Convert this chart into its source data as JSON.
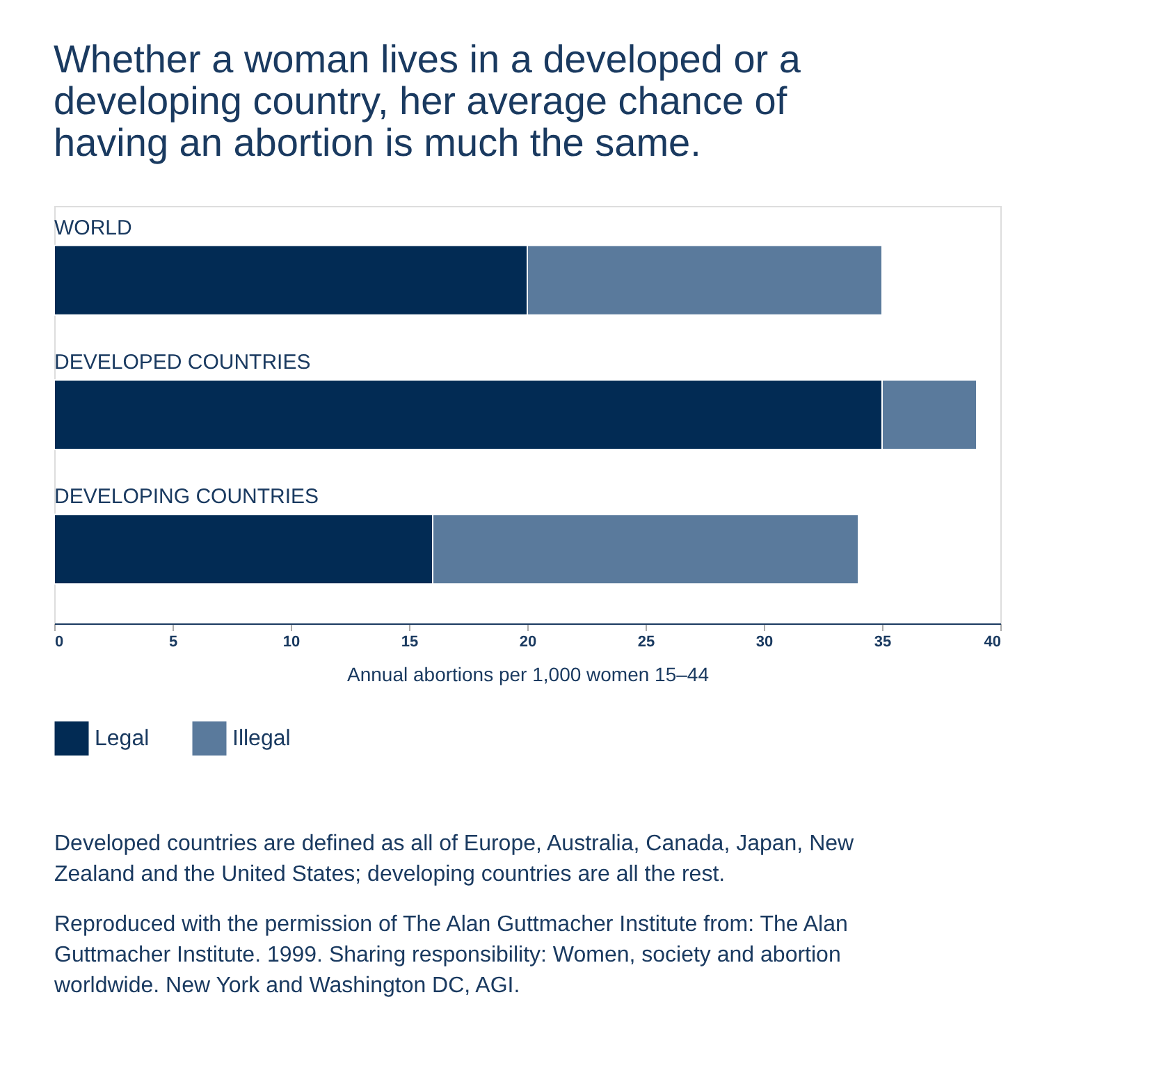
{
  "chart_data": {
    "type": "bar",
    "orientation": "horizontal",
    "stacked": true,
    "title": "Whether a woman lives in a developed or a developing country, her average chance of having an abortion is much the same.",
    "categories": [
      "WORLD",
      "DEVELOPED COUNTRIES",
      "DEVELOPING COUNTRIES"
    ],
    "series": [
      {
        "name": "Legal",
        "color": "#022b54",
        "values": [
          20,
          35,
          16
        ]
      },
      {
        "name": "Illegal",
        "color": "#5a7a9c",
        "values": [
          15,
          4,
          18
        ]
      }
    ],
    "xlabel": "Annual abortions per 1,000 women 15–44",
    "xlim": [
      0,
      40
    ],
    "xticks": [
      0,
      5,
      10,
      15,
      20,
      25,
      30,
      35,
      40
    ],
    "grid": false,
    "legend": "bottom left",
    "annotations": [
      "Developed countries are defined as all of Europe, Australia, Canada, Japan, New Zealand and the United States; developing countries are all the rest.",
      "Reproduced with the permission of The Alan Guttmacher Institute from: The Alan Guttmacher Institute. 1999. Sharing responsibility: Women, society and abortion worldwide. New York and Washington DC, AGI."
    ]
  }
}
